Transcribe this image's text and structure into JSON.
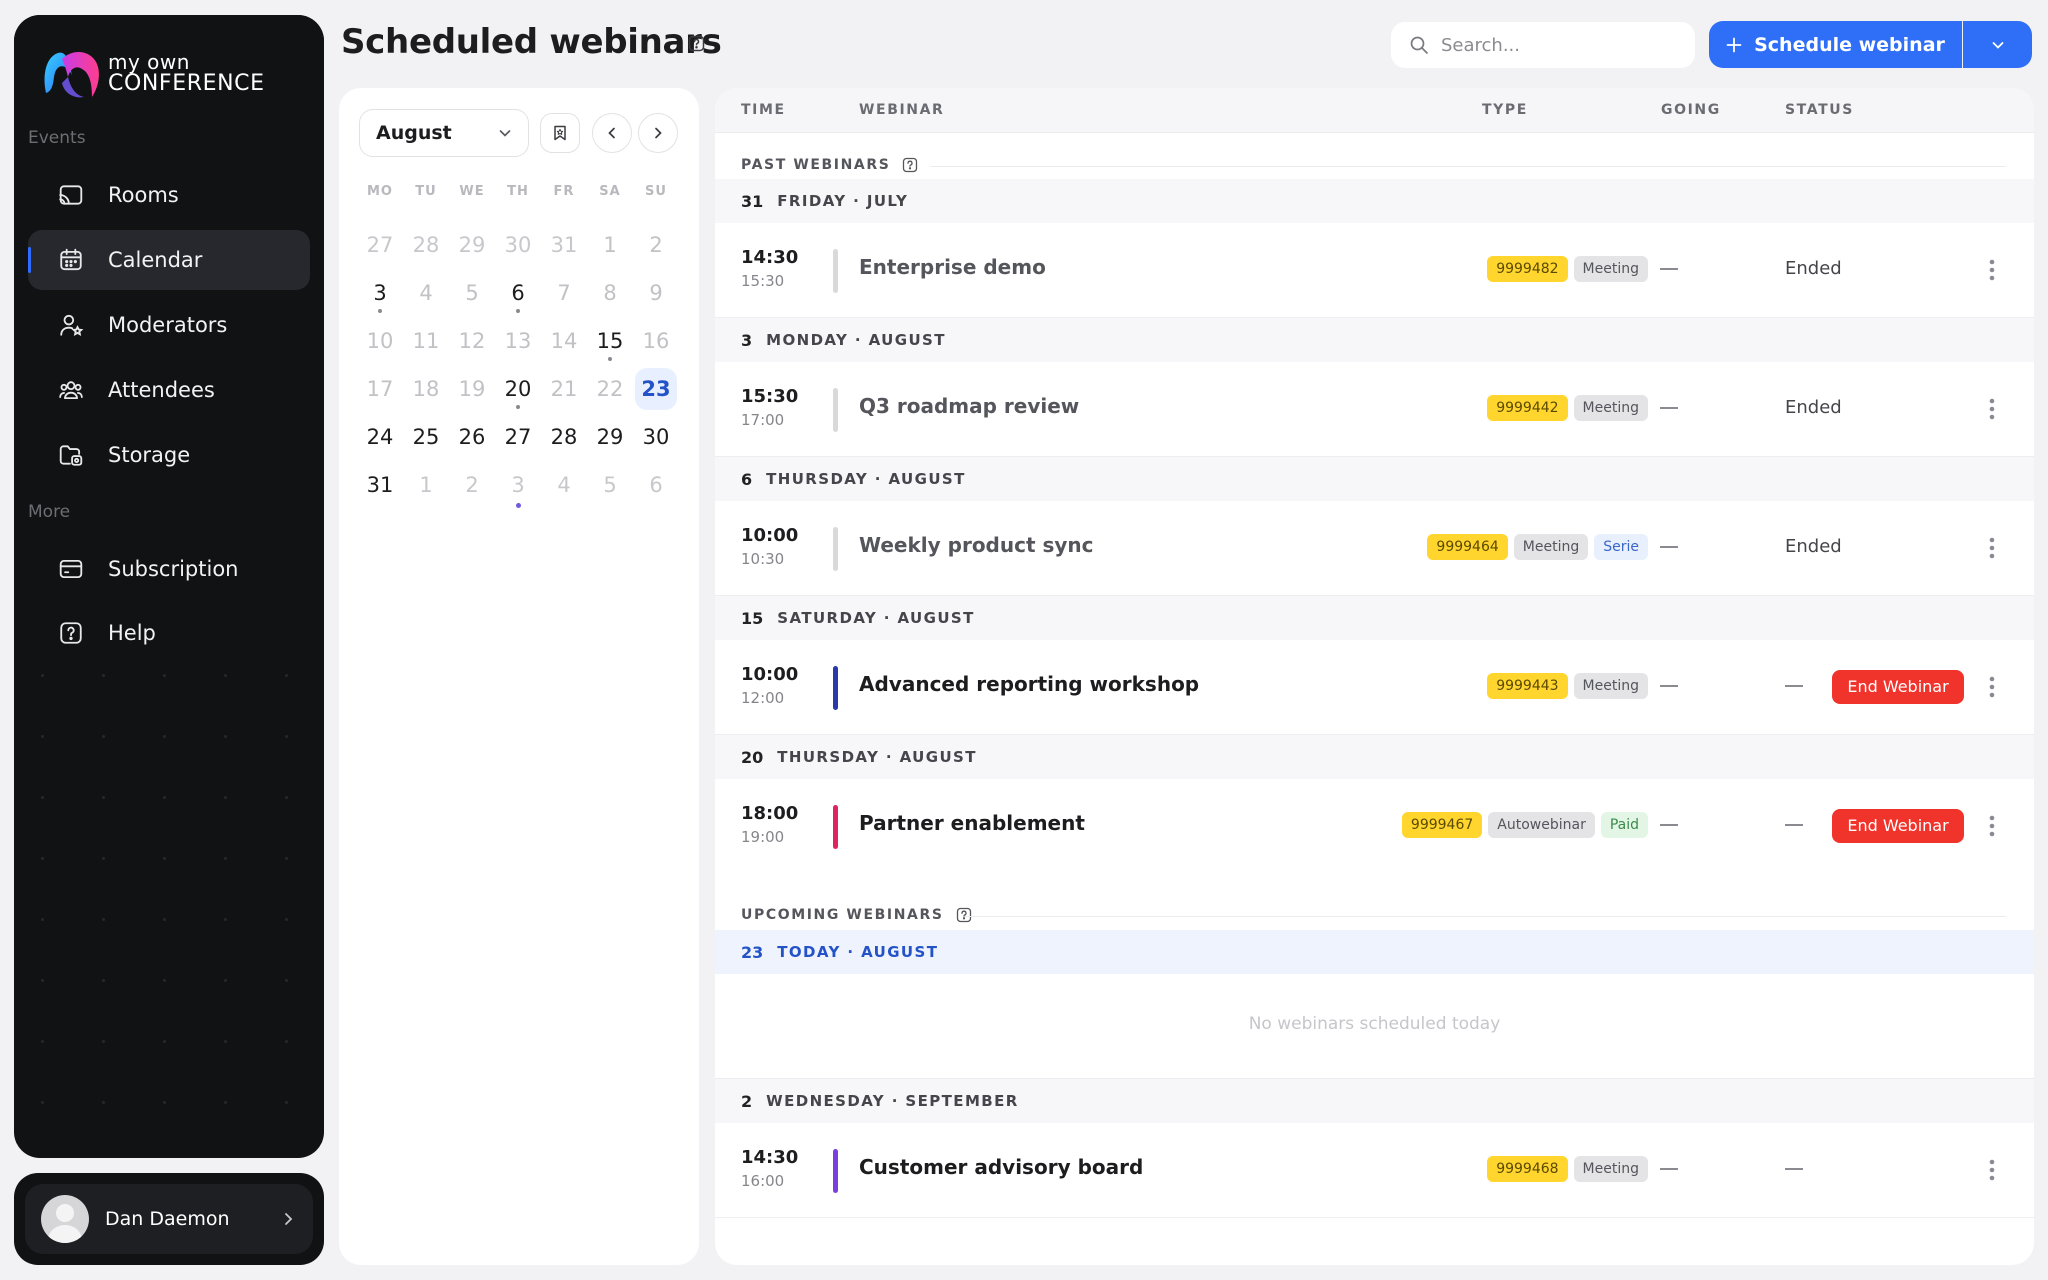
{
  "sidebar": {
    "logo": {
      "line1": "my own",
      "line2": "CONFERENCE"
    },
    "sections": {
      "events": "Events",
      "more": "More"
    },
    "items": [
      {
        "label": "Rooms",
        "icon": "cast-icon"
      },
      {
        "label": "Calendar",
        "icon": "calendar-icon",
        "active": true
      },
      {
        "label": "Moderators",
        "icon": "user-star-icon"
      },
      {
        "label": "Attendees",
        "icon": "users-icon"
      },
      {
        "label": "Storage",
        "icon": "folder-icon"
      },
      {
        "label": "Subscription",
        "icon": "card-icon"
      },
      {
        "label": "Help",
        "icon": "help-icon"
      }
    ],
    "user": {
      "name": "Dan Daemon"
    }
  },
  "header": {
    "title": "Scheduled webinars",
    "search_placeholder": "Search...",
    "schedule_label": "Schedule webinar"
  },
  "calendar": {
    "month": "August",
    "weekdays": [
      "MO",
      "TU",
      "WE",
      "TH",
      "FR",
      "SA",
      "SU"
    ],
    "weeks": [
      [
        "27",
        "28",
        "29",
        "30",
        "31",
        "1",
        "2"
      ],
      [
        "3",
        "4",
        "5",
        "6",
        "7",
        "8",
        "9"
      ],
      [
        "10",
        "11",
        "12",
        "13",
        "14",
        "15",
        "16"
      ],
      [
        "17",
        "18",
        "19",
        "20",
        "21",
        "22",
        "23"
      ],
      [
        "24",
        "25",
        "26",
        "27",
        "28",
        "29",
        "30"
      ],
      [
        "31",
        "1",
        "2",
        "3",
        "4",
        "5",
        "6"
      ]
    ]
  },
  "table": {
    "columns": {
      "time": "TIME",
      "webinar": "WEBINAR",
      "type": "TYPE",
      "going": "GOING",
      "status": "STATUS"
    },
    "past_label": "PAST WEBINARS",
    "upcoming_label": "UPCOMING WEBINARS",
    "empty_today": "No webinars scheduled today",
    "days": [
      {
        "num": "31",
        "label": "FRIDAY · JULY"
      },
      {
        "num": "3",
        "label": "MONDAY · AUGUST"
      },
      {
        "num": "6",
        "label": "THURSDAY · AUGUST"
      },
      {
        "num": "15",
        "label": "SATURDAY · AUGUST"
      },
      {
        "num": "20",
        "label": "THURSDAY · AUGUST"
      },
      {
        "num": "23",
        "label": "TODAY · AUGUST"
      },
      {
        "num": "2",
        "label": "WEDNESDAY · SEPTEMBER"
      }
    ],
    "events": [
      {
        "start": "14:30",
        "end": "15:30",
        "name": "Enterprise demo",
        "id": "9999482",
        "type": "Meeting",
        "status": "Ended",
        "color": "#d9d9dc"
      },
      {
        "start": "15:30",
        "end": "17:00",
        "name": "Q3 roadmap review",
        "id": "9999442",
        "type": "Meeting",
        "status": "Ended",
        "color": "#d9d9dc"
      },
      {
        "start": "10:00",
        "end": "10:30",
        "name": "Weekly product sync",
        "id": "9999464",
        "type": "Meeting",
        "extra": "Serie",
        "status": "Ended",
        "color": "#d9d9dc"
      },
      {
        "start": "10:00",
        "end": "12:00",
        "name": "Advanced reporting workshop",
        "id": "9999443",
        "type": "Meeting",
        "action": "End Webinar",
        "color": "#2a3aa8"
      },
      {
        "start": "18:00",
        "end": "19:00",
        "name": "Partner enablement",
        "id": "9999467",
        "type": "Autowebinar",
        "extra": "Paid",
        "action": "End Webinar",
        "color": "#e0245e"
      },
      {
        "start": "14:30",
        "end": "16:00",
        "name": "Customer advisory board",
        "id": "9999468",
        "type": "Meeting",
        "color": "#7b3fe0"
      }
    ]
  },
  "colors": {
    "accent": "#2f6ff7",
    "danger": "#f0332b",
    "tag_id": "#ffd52e"
  }
}
